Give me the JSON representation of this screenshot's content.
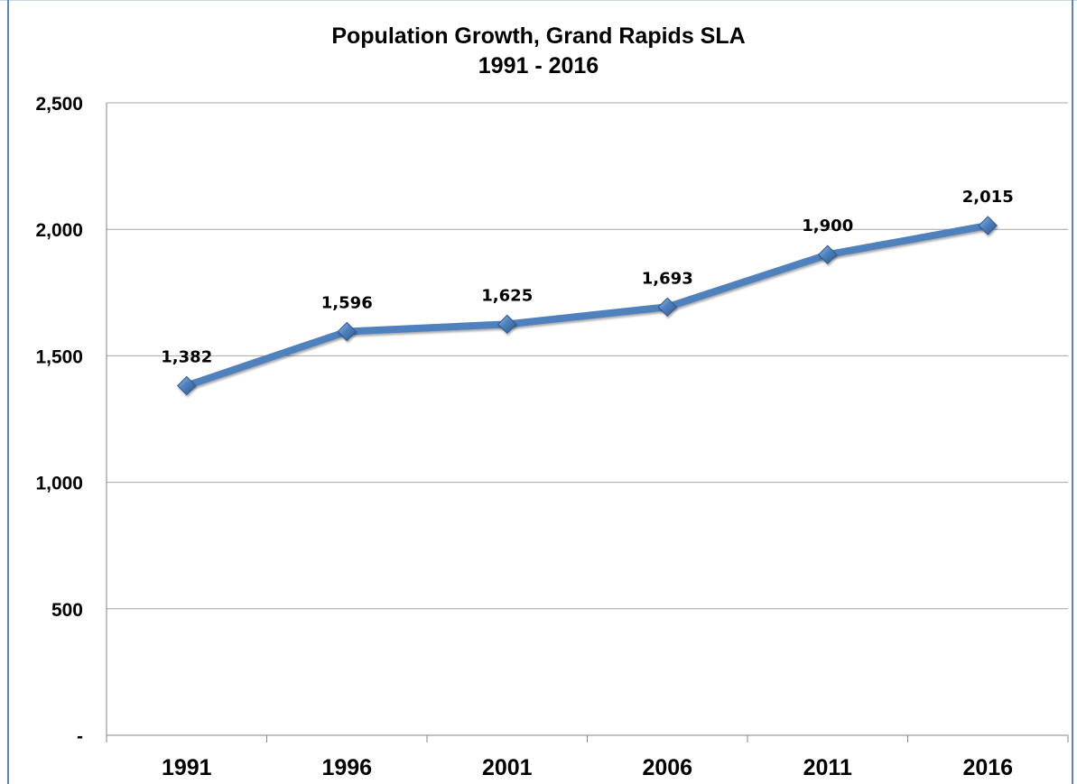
{
  "chart_data": {
    "type": "line",
    "title": "Population Growth, Grand Rapids SLA",
    "subtitle": "1991 - 2016",
    "categories": [
      "1991",
      "1996",
      "2001",
      "2006",
      "2011",
      "2016"
    ],
    "series": [
      {
        "values": [
          1382,
          1596,
          1625,
          1693,
          1900,
          2015
        ],
        "data_labels": [
          "1,382",
          "1,596",
          "1,625",
          "1,693",
          "1,900",
          "2,015"
        ]
      }
    ],
    "y_ticks": [
      {
        "value": 0,
        "label": "-"
      },
      {
        "value": 500,
        "label": "500"
      },
      {
        "value": 1000,
        "label": "1,000"
      },
      {
        "value": 1500,
        "label": "1,500"
      },
      {
        "value": 2000,
        "label": "2,000"
      },
      {
        "value": 2500,
        "label": "2,500"
      }
    ],
    "ylim": [
      0,
      2500
    ],
    "grid": true,
    "legend": "none",
    "colors": {
      "line": "#4f81bd",
      "marker": "#4a7ebb",
      "gridline": "#a6a6a6",
      "frame": "#5b86b8"
    }
  }
}
